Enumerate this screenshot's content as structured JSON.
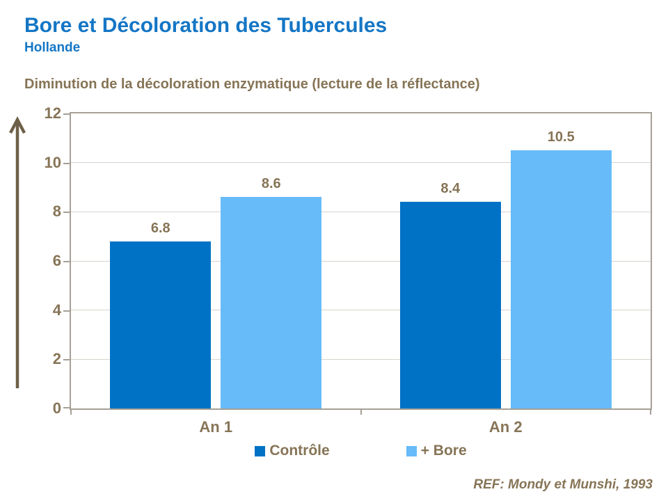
{
  "slide": {
    "title": "Bore et Décoloration des Tubercules",
    "subtitle": "Hollande",
    "chart_heading": "Diminution de la décoloration enzymatique (lecture de la réflectance)",
    "reference": "REF: Mondy et Munshi, 1993"
  },
  "colors": {
    "title_blue": "#1476C5",
    "text_brown": "#867456",
    "controle_blue": "#0072C6",
    "bore_blue": "#67BBF9",
    "gridline": "#D8D4CC",
    "axis_border": "#A6A096",
    "arrow_brown": "#6E6048"
  },
  "chart_data": {
    "type": "bar",
    "title": "Diminution de la décoloration enzymatique (lecture de la réflectance)",
    "categories": [
      "An 1",
      "An 2"
    ],
    "series": [
      {
        "name": "Contrôle",
        "values": [
          6.8,
          8.4
        ],
        "color": "#0072C6"
      },
      {
        "name": "+ Bore",
        "values": [
          8.6,
          10.5
        ],
        "color": "#67BBF9"
      }
    ],
    "xlabel": "",
    "ylabel": "",
    "ylim": [
      0,
      12
    ],
    "ytick_step": 2,
    "grid": true,
    "legend_position": "bottom",
    "annotation": "REF: Mondy et Munshi, 1993"
  }
}
